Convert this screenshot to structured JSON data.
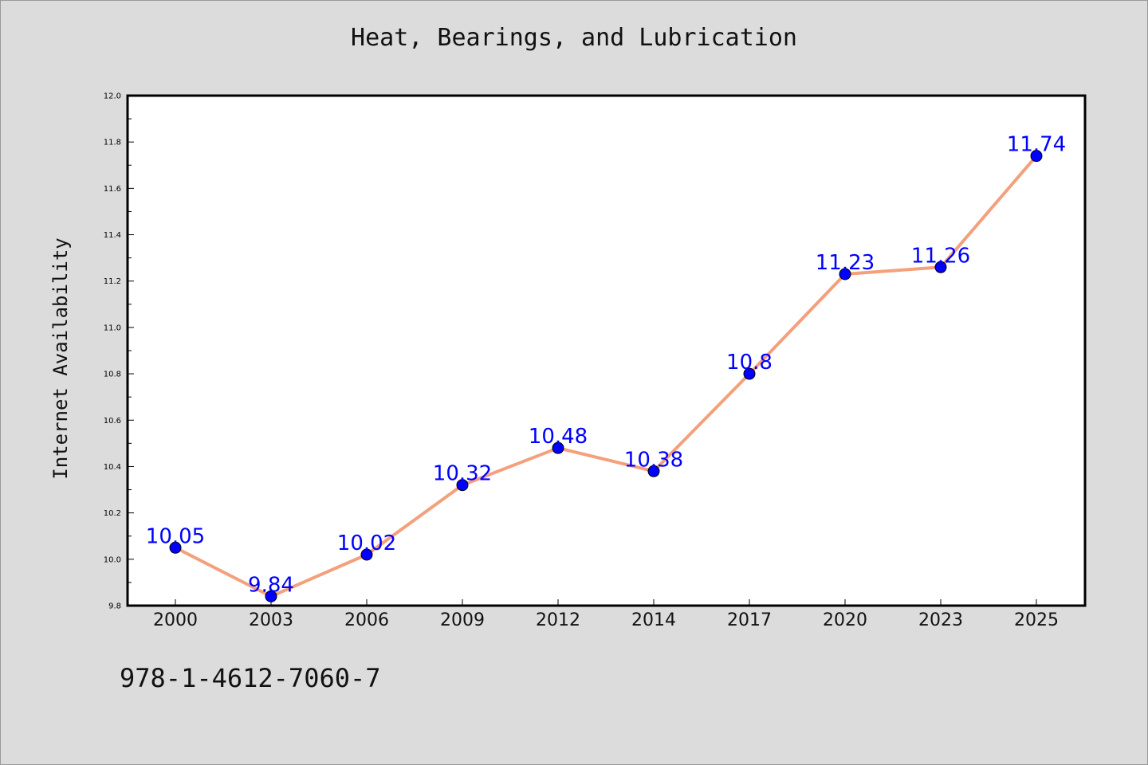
{
  "colors": {
    "background": "#dcdcdc",
    "plot_background": "#ffffff",
    "line": "#f4a07c",
    "marker": "#0000ff",
    "data_label": "#0000ff"
  },
  "chart_data": {
    "type": "line",
    "title": "Heat, Bearings, and Lubrication",
    "xlabel": "",
    "ylabel": "Internet Availability",
    "categories": [
      "2000",
      "2003",
      "2006",
      "2009",
      "2012",
      "2014",
      "2017",
      "2020",
      "2023",
      "2025"
    ],
    "series": [
      {
        "values": [
          10.05,
          9.84,
          10.02,
          10.32,
          10.48,
          10.38,
          10.8,
          11.23,
          11.26,
          11.74
        ],
        "labels": [
          "10.05",
          "9.84",
          "10.02",
          "10.32",
          "10.48",
          "10.38",
          "10.8",
          "11.23",
          "11.26",
          "11.74"
        ]
      }
    ],
    "ylim": [
      9.8,
      12.0
    ],
    "yticks": [
      "9.8",
      "10.0",
      "10.2",
      "10.4",
      "10.6",
      "10.8",
      "11.0",
      "11.2",
      "11.4",
      "11.6",
      "11.8",
      "12.0"
    ],
    "grid": false,
    "legend": "none"
  },
  "footer_text": "978-1-4612-7060-7"
}
